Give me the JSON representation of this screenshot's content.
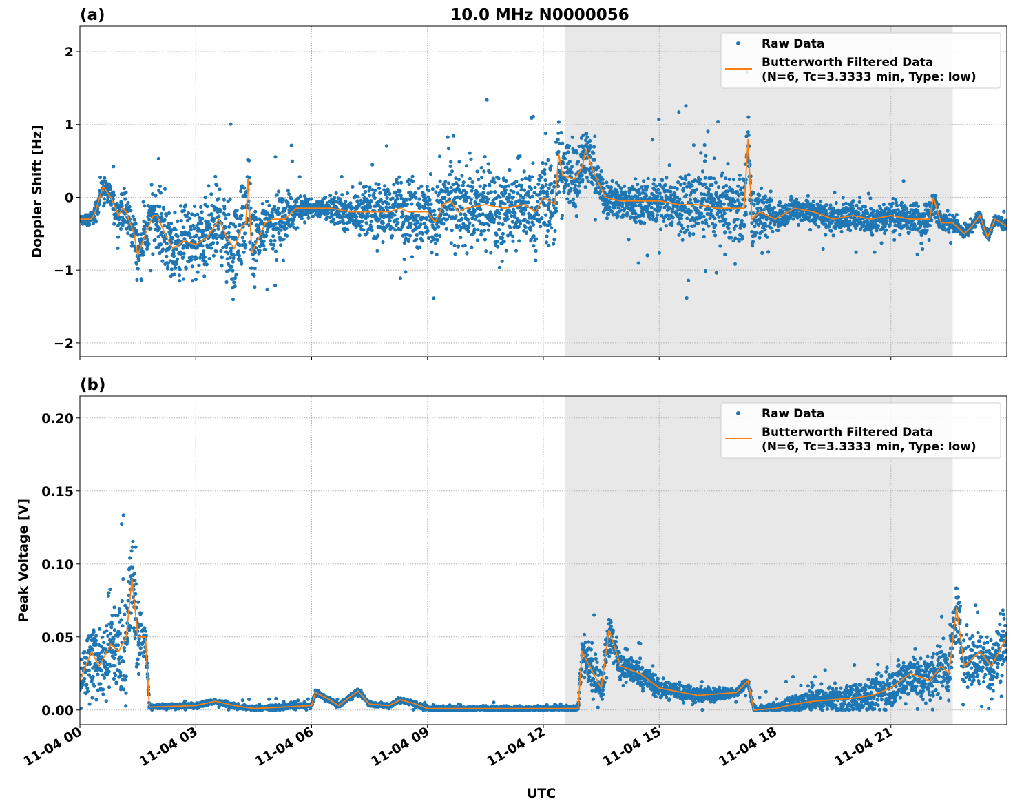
{
  "chart_data": [
    {
      "type": "scatter",
      "panel_label": "(a)",
      "title": "10.0 MHz N0000056",
      "xlabel": "",
      "ylabel": "Doppler Shift [Hz]",
      "x_units": "hours UTC on 11-04",
      "xlim": [
        0,
        24
      ],
      "ylim": [
        -2.19,
        2.35
      ],
      "yticks": [
        -2,
        -1,
        0,
        1,
        2
      ],
      "ytick_labels": [
        "−2",
        "−1",
        "0",
        "1",
        "2"
      ],
      "xticks": [
        0,
        3,
        6,
        9,
        12,
        15,
        18,
        21
      ],
      "grid": true,
      "shaded_region": [
        12.57,
        22.6
      ],
      "legend": {
        "placement": "top-right",
        "entries": [
          "Raw Data",
          "Butterworth Filtered Data\n(N=6, Tc=3.3333 min, Type: low)"
        ]
      },
      "series": [
        {
          "name": "Raw Data",
          "kind": "scatter",
          "color": "#1f77b4",
          "raw_spread": [
            [
              0,
              0.05
            ],
            [
              1.2,
              0.3
            ],
            [
              2,
              0.5
            ],
            [
              4,
              0.7
            ],
            [
              5.5,
              0.3
            ],
            [
              6,
              0.12
            ],
            [
              9,
              0.6
            ],
            [
              12.5,
              0.7
            ],
            [
              13.5,
              0.25
            ],
            [
              17.3,
              0.6
            ],
            [
              18,
              0.2
            ],
            [
              22,
              0.25
            ],
            [
              23,
              0.08
            ],
            [
              24,
              0.08
            ]
          ]
        },
        {
          "name": "Butterworth Filtered Data (N=6, Tc=3.3333 min, Type: low)",
          "kind": "line",
          "color": "#ff7f0e",
          "points": [
            [
              0,
              -0.3
            ],
            [
              0.3,
              -0.3
            ],
            [
              0.4,
              -0.2
            ],
            [
              0.6,
              0.15
            ],
            [
              0.8,
              0.0
            ],
            [
              1.0,
              -0.25
            ],
            [
              1.1,
              -0.15
            ],
            [
              1.2,
              -0.2
            ],
            [
              1.4,
              -0.5
            ],
            [
              1.5,
              -0.8
            ],
            [
              1.7,
              -0.5
            ],
            [
              1.9,
              -0.25
            ],
            [
              2.0,
              -0.25
            ],
            [
              2.2,
              -0.5
            ],
            [
              2.4,
              -0.7
            ],
            [
              2.7,
              -0.6
            ],
            [
              3.0,
              -0.65
            ],
            [
              3.3,
              -0.55
            ],
            [
              3.6,
              -0.3
            ],
            [
              3.8,
              -0.55
            ],
            [
              4.0,
              -0.7
            ],
            [
              4.2,
              -0.4
            ],
            [
              4.3,
              -0.35
            ],
            [
              4.35,
              0.25
            ],
            [
              4.45,
              -0.75
            ],
            [
              4.6,
              -0.6
            ],
            [
              4.8,
              -0.35
            ],
            [
              5.0,
              -0.3
            ],
            [
              5.3,
              -0.3
            ],
            [
              5.6,
              -0.15
            ],
            [
              6.0,
              -0.15
            ],
            [
              6.5,
              -0.15
            ],
            [
              7.0,
              -0.2
            ],
            [
              7.5,
              -0.2
            ],
            [
              8.0,
              -0.2
            ],
            [
              8.3,
              -0.15
            ],
            [
              8.5,
              -0.2
            ],
            [
              9.0,
              -0.2
            ],
            [
              9.2,
              -0.35
            ],
            [
              9.4,
              -0.1
            ],
            [
              9.6,
              -0.05
            ],
            [
              9.8,
              -0.2
            ],
            [
              10.0,
              -0.15
            ],
            [
              10.5,
              -0.1
            ],
            [
              11.0,
              -0.15
            ],
            [
              11.5,
              -0.1
            ],
            [
              11.8,
              -0.2
            ],
            [
              12.0,
              0.0
            ],
            [
              12.3,
              -0.1
            ],
            [
              12.4,
              0.6
            ],
            [
              12.5,
              0.3
            ],
            [
              12.8,
              0.25
            ],
            [
              13.0,
              0.4
            ],
            [
              13.1,
              0.65
            ],
            [
              13.3,
              0.35
            ],
            [
              13.6,
              0.0
            ],
            [
              14.0,
              -0.05
            ],
            [
              14.5,
              -0.05
            ],
            [
              15.0,
              -0.05
            ],
            [
              15.5,
              -0.1
            ],
            [
              16.0,
              -0.1
            ],
            [
              16.5,
              -0.15
            ],
            [
              17.0,
              -0.15
            ],
            [
              17.2,
              -0.15
            ],
            [
              17.3,
              0.8
            ],
            [
              17.4,
              -0.3
            ],
            [
              17.6,
              -0.2
            ],
            [
              18.0,
              -0.3
            ],
            [
              18.5,
              -0.15
            ],
            [
              19.0,
              -0.2
            ],
            [
              19.5,
              -0.3
            ],
            [
              20.0,
              -0.25
            ],
            [
              20.5,
              -0.3
            ],
            [
              21.0,
              -0.25
            ],
            [
              21.5,
              -0.3
            ],
            [
              22.0,
              -0.3
            ],
            [
              22.1,
              0.0
            ],
            [
              22.3,
              -0.35
            ],
            [
              22.6,
              -0.35
            ],
            [
              22.9,
              -0.5
            ],
            [
              23.1,
              -0.4
            ],
            [
              23.3,
              -0.25
            ],
            [
              23.5,
              -0.55
            ],
            [
              23.7,
              -0.3
            ],
            [
              24,
              -0.4
            ]
          ]
        }
      ]
    },
    {
      "type": "scatter",
      "panel_label": "(b)",
      "xlabel": "UTC",
      "ylabel": "Peak Voltage [V]",
      "xlim": [
        0,
        24
      ],
      "ylim": [
        -0.01,
        0.215
      ],
      "yticks": [
        0,
        0.05,
        0.1,
        0.15,
        0.2
      ],
      "ytick_labels": [
        "0.00",
        "0.05",
        "0.10",
        "0.15",
        "0.20"
      ],
      "xticks": [
        0,
        3,
        6,
        9,
        12,
        15,
        18,
        21
      ],
      "xtick_labels": [
        "11-04 00",
        "11-04 03",
        "11-04 06",
        "11-04 09",
        "11-04 12",
        "11-04 15",
        "11-04 18",
        "11-04 21"
      ],
      "grid": true,
      "shaded_region": [
        12.57,
        22.6
      ],
      "legend": {
        "placement": "top-right",
        "entries": [
          "Raw Data",
          "Butterworth Filtered Data\n(N=6, Tc=3.3333 min, Type: low)"
        ]
      },
      "series": [
        {
          "name": "Raw Data",
          "kind": "scatter",
          "color": "#1f77b4",
          "raw_spread": [
            [
              0,
              0.02
            ],
            [
              1.3,
              0.05
            ],
            [
              1.8,
              0.002
            ],
            [
              12.9,
              0.002
            ],
            [
              13,
              0.02
            ],
            [
              15,
              0.008
            ],
            [
              17.4,
              0.003
            ],
            [
              19,
              0.008
            ],
            [
              22,
              0.02
            ],
            [
              24,
              0.025
            ]
          ]
        },
        {
          "name": "Butterworth Filtered Data (N=6, Tc=3.3333 min, Type: low)",
          "kind": "line",
          "color": "#ff7f0e",
          "points": [
            [
              0,
              0.02
            ],
            [
              0.3,
              0.04
            ],
            [
              0.5,
              0.03
            ],
            [
              0.8,
              0.045
            ],
            [
              1.0,
              0.04
            ],
            [
              1.2,
              0.05
            ],
            [
              1.35,
              0.09
            ],
            [
              1.5,
              0.05
            ],
            [
              1.7,
              0.05
            ],
            [
              1.8,
              0.002
            ],
            [
              3.0,
              0.003
            ],
            [
              3.5,
              0.006
            ],
            [
              4,
              0.003
            ],
            [
              4.5,
              0.001
            ],
            [
              6.0,
              0.003
            ],
            [
              6.1,
              0.012
            ],
            [
              6.4,
              0.008
            ],
            [
              6.7,
              0.003
            ],
            [
              7.2,
              0.013
            ],
            [
              7.5,
              0.004
            ],
            [
              8.0,
              0.003
            ],
            [
              8.3,
              0.007
            ],
            [
              8.7,
              0.004
            ],
            [
              9,
              0.001
            ],
            [
              12.9,
              0.001
            ],
            [
              13.0,
              0.04
            ],
            [
              13.2,
              0.03
            ],
            [
              13.5,
              0.015
            ],
            [
              13.7,
              0.055
            ],
            [
              14.0,
              0.03
            ],
            [
              14.5,
              0.025
            ],
            [
              15,
              0.015
            ],
            [
              16,
              0.01
            ],
            [
              17,
              0.012
            ],
            [
              17.3,
              0.02
            ],
            [
              17.45,
              0.0
            ],
            [
              18,
              0.001
            ],
            [
              18.5,
              0.004
            ],
            [
              19,
              0.006
            ],
            [
              20,
              0.008
            ],
            [
              20.5,
              0.01
            ],
            [
              21,
              0.015
            ],
            [
              21.5,
              0.025
            ],
            [
              22,
              0.02
            ],
            [
              22.3,
              0.03
            ],
            [
              22.5,
              0.025
            ],
            [
              22.7,
              0.07
            ],
            [
              22.9,
              0.03
            ],
            [
              23.3,
              0.04
            ],
            [
              23.6,
              0.03
            ],
            [
              24,
              0.05
            ]
          ]
        }
      ]
    }
  ]
}
